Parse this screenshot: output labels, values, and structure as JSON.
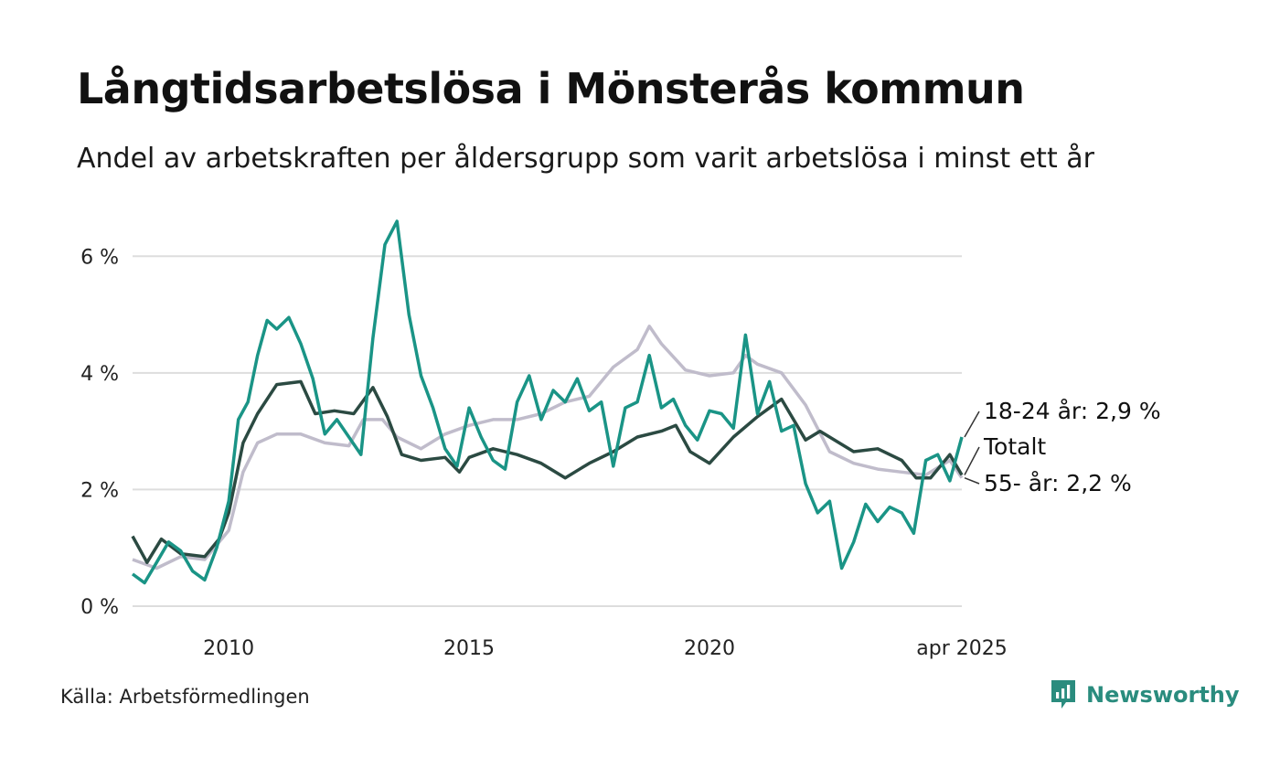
{
  "header": {
    "title": "Långtidsarbetslösa i Mönsterås kommun",
    "subtitle": "Andel av arbetskraften per åldersgrupp som varit arbetslösa i minst ett år"
  },
  "footer": {
    "source": "Källa: Arbetsförmedlingen",
    "brand": "Newsworthy"
  },
  "colors": {
    "series_18_24": "#1a9486",
    "series_totalt": "#2b4a42",
    "series_55": "#c0bccb",
    "gridline": "#dddddd",
    "brand": "#2a8c7e"
  },
  "chart_data": {
    "type": "line",
    "ylim": [
      0,
      6.6
    ],
    "xlim": [
      2008.0,
      2025.25
    ],
    "yticks": [
      {
        "value": 0,
        "label": "0 %"
      },
      {
        "value": 2,
        "label": "2 %"
      },
      {
        "value": 4,
        "label": "4 %"
      },
      {
        "value": 6,
        "label": "6 %"
      }
    ],
    "xticks": [
      {
        "value": 2010,
        "label": "2010"
      },
      {
        "value": 2015,
        "label": "2015"
      },
      {
        "value": 2020,
        "label": "2020"
      },
      {
        "value": 2025.25,
        "label": "apr 2025"
      }
    ],
    "grid": true,
    "series": [
      {
        "key": "s55",
        "color_key": "series_55",
        "end_label": "55- år: 2,2 %",
        "points": [
          [
            2008.0,
            0.8
          ],
          [
            2008.5,
            0.65
          ],
          [
            2009.0,
            0.85
          ],
          [
            2009.5,
            0.8
          ],
          [
            2010.0,
            1.3
          ],
          [
            2010.3,
            2.3
          ],
          [
            2010.6,
            2.8
          ],
          [
            2011.0,
            2.95
          ],
          [
            2011.5,
            2.95
          ],
          [
            2012.0,
            2.8
          ],
          [
            2012.5,
            2.75
          ],
          [
            2012.8,
            3.2
          ],
          [
            2013.2,
            3.2
          ],
          [
            2013.5,
            2.9
          ],
          [
            2014.0,
            2.7
          ],
          [
            2014.5,
            2.95
          ],
          [
            2015.0,
            3.1
          ],
          [
            2015.5,
            3.2
          ],
          [
            2016.0,
            3.2
          ],
          [
            2016.5,
            3.3
          ],
          [
            2017.0,
            3.5
          ],
          [
            2017.5,
            3.6
          ],
          [
            2018.0,
            4.1
          ],
          [
            2018.5,
            4.4
          ],
          [
            2018.75,
            4.8
          ],
          [
            2019.0,
            4.5
          ],
          [
            2019.5,
            4.05
          ],
          [
            2020.0,
            3.95
          ],
          [
            2020.5,
            4.0
          ],
          [
            2020.75,
            4.3
          ],
          [
            2021.0,
            4.15
          ],
          [
            2021.5,
            4.0
          ],
          [
            2022.0,
            3.45
          ],
          [
            2022.5,
            2.65
          ],
          [
            2023.0,
            2.45
          ],
          [
            2023.5,
            2.35
          ],
          [
            2024.0,
            2.3
          ],
          [
            2024.5,
            2.25
          ],
          [
            2024.8,
            2.4
          ],
          [
            2025.0,
            2.5
          ],
          [
            2025.25,
            2.2
          ]
        ]
      },
      {
        "key": "totalt",
        "color_key": "series_totalt",
        "end_label": "Totalt",
        "points": [
          [
            2008.0,
            1.2
          ],
          [
            2008.3,
            0.75
          ],
          [
            2008.6,
            1.15
          ],
          [
            2009.0,
            0.9
          ],
          [
            2009.5,
            0.85
          ],
          [
            2009.8,
            1.15
          ],
          [
            2010.0,
            1.6
          ],
          [
            2010.3,
            2.8
          ],
          [
            2010.6,
            3.3
          ],
          [
            2011.0,
            3.8
          ],
          [
            2011.5,
            3.85
          ],
          [
            2011.8,
            3.3
          ],
          [
            2012.2,
            3.35
          ],
          [
            2012.6,
            3.3
          ],
          [
            2013.0,
            3.75
          ],
          [
            2013.3,
            3.25
          ],
          [
            2013.6,
            2.6
          ],
          [
            2014.0,
            2.5
          ],
          [
            2014.5,
            2.55
          ],
          [
            2014.8,
            2.3
          ],
          [
            2015.0,
            2.55
          ],
          [
            2015.5,
            2.7
          ],
          [
            2016.0,
            2.6
          ],
          [
            2016.5,
            2.45
          ],
          [
            2017.0,
            2.2
          ],
          [
            2017.5,
            2.45
          ],
          [
            2018.0,
            2.65
          ],
          [
            2018.5,
            2.9
          ],
          [
            2019.0,
            3.0
          ],
          [
            2019.3,
            3.1
          ],
          [
            2019.6,
            2.65
          ],
          [
            2020.0,
            2.45
          ],
          [
            2020.5,
            2.9
          ],
          [
            2021.0,
            3.25
          ],
          [
            2021.5,
            3.55
          ],
          [
            2022.0,
            2.85
          ],
          [
            2022.3,
            3.0
          ],
          [
            2022.6,
            2.85
          ],
          [
            2023.0,
            2.65
          ],
          [
            2023.5,
            2.7
          ],
          [
            2024.0,
            2.5
          ],
          [
            2024.3,
            2.2
          ],
          [
            2024.6,
            2.2
          ],
          [
            2025.0,
            2.6
          ],
          [
            2025.25,
            2.25
          ]
        ]
      },
      {
        "key": "s18_24",
        "color_key": "series_18_24",
        "end_label": "18-24 år: 2,9 %",
        "points": [
          [
            2008.0,
            0.55
          ],
          [
            2008.25,
            0.4
          ],
          [
            2008.5,
            0.75
          ],
          [
            2008.75,
            1.1
          ],
          [
            2009.0,
            0.95
          ],
          [
            2009.25,
            0.6
          ],
          [
            2009.5,
            0.45
          ],
          [
            2009.75,
            1.0
          ],
          [
            2010.0,
            1.8
          ],
          [
            2010.2,
            3.2
          ],
          [
            2010.4,
            3.5
          ],
          [
            2010.6,
            4.3
          ],
          [
            2010.8,
            4.9
          ],
          [
            2011.0,
            4.75
          ],
          [
            2011.25,
            4.95
          ],
          [
            2011.5,
            4.5
          ],
          [
            2011.75,
            3.9
          ],
          [
            2012.0,
            2.95
          ],
          [
            2012.25,
            3.2
          ],
          [
            2012.5,
            2.9
          ],
          [
            2012.75,
            2.6
          ],
          [
            2013.0,
            4.6
          ],
          [
            2013.25,
            6.2
          ],
          [
            2013.5,
            6.6
          ],
          [
            2013.75,
            5.0
          ],
          [
            2014.0,
            3.95
          ],
          [
            2014.25,
            3.4
          ],
          [
            2014.5,
            2.7
          ],
          [
            2014.75,
            2.4
          ],
          [
            2015.0,
            3.4
          ],
          [
            2015.25,
            2.9
          ],
          [
            2015.5,
            2.5
          ],
          [
            2015.75,
            2.35
          ],
          [
            2016.0,
            3.5
          ],
          [
            2016.25,
            3.95
          ],
          [
            2016.5,
            3.2
          ],
          [
            2016.75,
            3.7
          ],
          [
            2017.0,
            3.5
          ],
          [
            2017.25,
            3.9
          ],
          [
            2017.5,
            3.35
          ],
          [
            2017.75,
            3.5
          ],
          [
            2018.0,
            2.4
          ],
          [
            2018.25,
            3.4
          ],
          [
            2018.5,
            3.5
          ],
          [
            2018.75,
            4.3
          ],
          [
            2019.0,
            3.4
          ],
          [
            2019.25,
            3.55
          ],
          [
            2019.5,
            3.1
          ],
          [
            2019.75,
            2.85
          ],
          [
            2020.0,
            3.35
          ],
          [
            2020.25,
            3.3
          ],
          [
            2020.5,
            3.05
          ],
          [
            2020.75,
            4.65
          ],
          [
            2021.0,
            3.3
          ],
          [
            2021.25,
            3.85
          ],
          [
            2021.5,
            3.0
          ],
          [
            2021.75,
            3.1
          ],
          [
            2022.0,
            2.1
          ],
          [
            2022.25,
            1.6
          ],
          [
            2022.5,
            1.8
          ],
          [
            2022.75,
            0.65
          ],
          [
            2023.0,
            1.1
          ],
          [
            2023.25,
            1.75
          ],
          [
            2023.5,
            1.45
          ],
          [
            2023.75,
            1.7
          ],
          [
            2024.0,
            1.6
          ],
          [
            2024.25,
            1.25
          ],
          [
            2024.5,
            2.5
          ],
          [
            2024.75,
            2.6
          ],
          [
            2025.0,
            2.15
          ],
          [
            2025.25,
            2.9
          ]
        ]
      }
    ]
  }
}
